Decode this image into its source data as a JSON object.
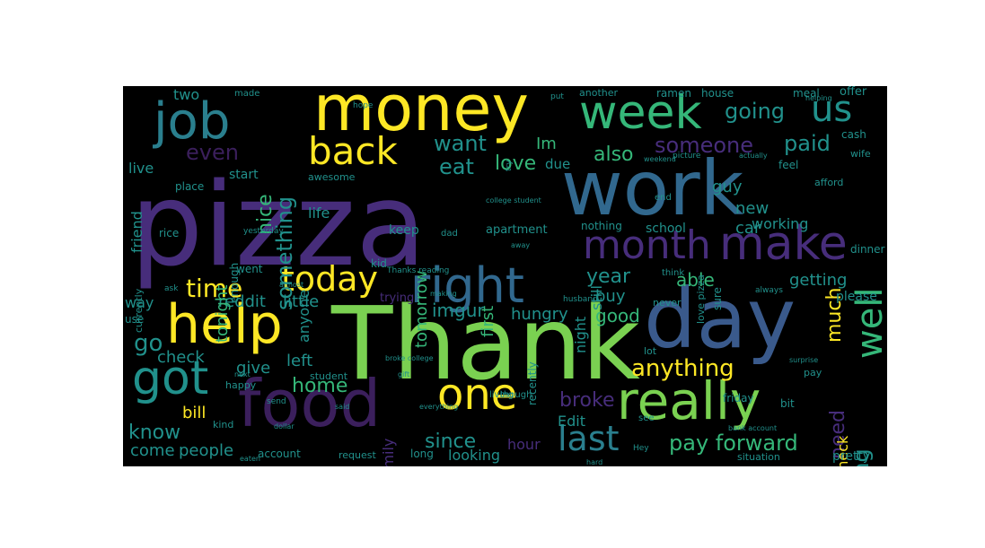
{
  "palette": {
    "purple": "#472d7b",
    "deep": "#3b1f5c",
    "blue": "#3a5a8c",
    "steel": "#31688e",
    "teal": "#21918c",
    "teal2": "#2a7f8e",
    "green": "#35b779",
    "lime": "#7ad151",
    "yellow": "#fde725",
    "bg": "#000000"
  },
  "wordcloud": {
    "words": [
      {
        "text": "pizza",
        "color": "purple"
      },
      {
        "text": "Thank",
        "color": "lime"
      },
      {
        "text": "work",
        "color": "steel"
      },
      {
        "text": "day",
        "color": "blue"
      },
      {
        "text": "money",
        "color": "yellow"
      },
      {
        "text": "food",
        "color": "deep"
      },
      {
        "text": "really",
        "color": "lime"
      },
      {
        "text": "week",
        "color": "green"
      },
      {
        "text": "job",
        "color": "teal2"
      },
      {
        "text": "help",
        "color": "yellow"
      },
      {
        "text": "got",
        "color": "teal"
      },
      {
        "text": "month",
        "color": "purple"
      },
      {
        "text": "make",
        "color": "purple"
      },
      {
        "text": "right",
        "color": "steel"
      },
      {
        "text": "one",
        "color": "yellow"
      },
      {
        "text": "back",
        "color": "yellow"
      },
      {
        "text": "us",
        "color": "teal"
      },
      {
        "text": "today",
        "color": "yellow"
      },
      {
        "text": "last",
        "color": "teal2"
      },
      {
        "text": "eat",
        "color": "teal"
      },
      {
        "text": "want",
        "color": "teal"
      },
      {
        "text": "love",
        "color": "green"
      },
      {
        "text": "even",
        "color": "deep"
      },
      {
        "text": "someone",
        "color": "purple"
      },
      {
        "text": "paid",
        "color": "teal"
      },
      {
        "text": "going",
        "color": "teal"
      },
      {
        "text": "also",
        "color": "green"
      },
      {
        "text": "time",
        "color": "yellow"
      },
      {
        "text": "well",
        "color": "green"
      },
      {
        "text": "much",
        "color": "yellow"
      },
      {
        "text": "something",
        "color": "teal"
      },
      {
        "text": "nice",
        "color": "green"
      },
      {
        "text": "anything",
        "color": "yellow"
      },
      {
        "text": "pay forward",
        "color": "green"
      },
      {
        "text": "broke",
        "color": "purple"
      },
      {
        "text": "since",
        "color": "teal"
      },
      {
        "text": "home",
        "color": "green"
      },
      {
        "text": "know",
        "color": "teal"
      },
      {
        "text": "go",
        "color": "teal"
      },
      {
        "text": "reddit",
        "color": "teal"
      },
      {
        "text": "hungry",
        "color": "teal"
      },
      {
        "text": "imgur",
        "color": "teal"
      },
      {
        "text": "year",
        "color": "teal"
      },
      {
        "text": "able",
        "color": "green"
      },
      {
        "text": "getting",
        "color": "teal"
      },
      {
        "text": "need",
        "color": "purple"
      },
      {
        "text": "thing",
        "color": "teal"
      },
      {
        "text": "good",
        "color": "green"
      },
      {
        "text": "little",
        "color": "teal"
      },
      {
        "text": "people",
        "color": "teal"
      },
      {
        "text": "come",
        "color": "teal"
      },
      {
        "text": "bill",
        "color": "yellow"
      },
      {
        "text": "check",
        "color": "teal"
      },
      {
        "text": "give",
        "color": "teal"
      },
      {
        "text": "left",
        "color": "teal"
      },
      {
        "text": "family",
        "color": "purple"
      },
      {
        "text": "looking",
        "color": "teal"
      },
      {
        "text": "hour",
        "color": "purple"
      },
      {
        "text": "Edit",
        "color": "teal"
      },
      {
        "text": "buy",
        "color": "teal"
      },
      {
        "text": "car",
        "color": "teal"
      },
      {
        "text": "new",
        "color": "teal"
      },
      {
        "text": "guy",
        "color": "teal"
      },
      {
        "text": "working",
        "color": "teal"
      },
      {
        "text": "first",
        "color": "green"
      },
      {
        "text": "tomorrow",
        "color": "green"
      },
      {
        "text": "tonight",
        "color": "green"
      },
      {
        "text": "life",
        "color": "teal"
      },
      {
        "text": "anyone",
        "color": "teal"
      },
      {
        "text": "live",
        "color": "teal"
      },
      {
        "text": "friend",
        "color": "teal"
      },
      {
        "text": "two",
        "color": "teal"
      },
      {
        "text": "Im",
        "color": "green"
      },
      {
        "text": "way",
        "color": "teal"
      },
      {
        "text": "night",
        "color": "teal"
      },
      {
        "text": "still",
        "color": "teal"
      },
      {
        "text": "great",
        "color": "teal"
      },
      {
        "text": "paycheck",
        "color": "yellow"
      },
      {
        "text": "pretty",
        "color": "teal"
      },
      {
        "text": "offer",
        "color": "teal"
      },
      {
        "text": "meal",
        "color": "teal"
      },
      {
        "text": "house",
        "color": "teal"
      },
      {
        "text": "ramen",
        "color": "teal"
      },
      {
        "text": "another",
        "color": "teal"
      },
      {
        "text": "made",
        "color": "teal"
      },
      {
        "text": "due",
        "color": "teal"
      },
      {
        "text": "start",
        "color": "teal"
      },
      {
        "text": "keep",
        "color": "teal"
      },
      {
        "text": "apartment",
        "color": "teal"
      },
      {
        "text": "school",
        "color": "teal"
      },
      {
        "text": "nothing",
        "color": "teal"
      },
      {
        "text": "sure",
        "color": "teal"
      },
      {
        "text": "dinner",
        "color": "teal"
      },
      {
        "text": "please",
        "color": "teal"
      },
      {
        "text": "enough",
        "color": "teal"
      },
      {
        "text": "rice",
        "color": "teal"
      },
      {
        "text": "kid",
        "color": "teal"
      },
      {
        "text": "went",
        "color": "teal"
      },
      {
        "text": "trying",
        "color": "purple"
      },
      {
        "text": "friday",
        "color": "teal"
      },
      {
        "text": "account",
        "color": "teal"
      },
      {
        "text": "request",
        "color": "teal"
      },
      {
        "text": "long",
        "color": "teal"
      },
      {
        "text": "situation",
        "color": "teal"
      },
      {
        "text": "happy",
        "color": "teal"
      },
      {
        "text": "student",
        "color": "teal"
      },
      {
        "text": "cash",
        "color": "teal"
      },
      {
        "text": "wife",
        "color": "teal"
      },
      {
        "text": "afford",
        "color": "teal"
      },
      {
        "text": "feel",
        "color": "teal"
      },
      {
        "text": "place",
        "color": "teal"
      },
      {
        "text": "awesome",
        "color": "teal"
      },
      {
        "text": "use",
        "color": "teal"
      },
      {
        "text": "currently",
        "color": "teal"
      },
      {
        "text": "love pizza",
        "color": "teal"
      },
      {
        "text": "Thanks reading",
        "color": "teal"
      },
      {
        "text": "try",
        "color": "teal"
      },
      {
        "text": "hard",
        "color": "teal"
      },
      {
        "text": "never",
        "color": "teal"
      },
      {
        "text": "bit",
        "color": "teal"
      },
      {
        "text": "pay",
        "color": "teal"
      },
      {
        "text": "lot",
        "color": "teal"
      },
      {
        "text": "recently",
        "color": "teal"
      },
      {
        "text": "though",
        "color": "teal"
      },
      {
        "text": "living",
        "color": "teal"
      },
      {
        "text": "end",
        "color": "teal"
      },
      {
        "text": "kind",
        "color": "teal"
      },
      {
        "text": "think",
        "color": "teal"
      },
      {
        "text": "always",
        "color": "teal"
      },
      {
        "text": "see",
        "color": "teal"
      },
      {
        "text": "put",
        "color": "teal"
      },
      {
        "text": "hope",
        "color": "teal"
      },
      {
        "text": "yesterday",
        "color": "teal"
      },
      {
        "text": "dad",
        "color": "teal"
      },
      {
        "text": "husband",
        "color": "teal"
      },
      {
        "text": "college student",
        "color": "teal"
      },
      {
        "text": "picture",
        "color": "teal"
      },
      {
        "text": "dollar",
        "color": "teal"
      },
      {
        "text": "ask",
        "color": "teal"
      },
      {
        "text": "send",
        "color": "teal"
      },
      {
        "text": "making",
        "color": "teal"
      },
      {
        "text": "said",
        "color": "teal"
      },
      {
        "text": "helping",
        "color": "teal"
      },
      {
        "text": "actually",
        "color": "teal"
      },
      {
        "text": "Hey",
        "color": "teal"
      },
      {
        "text": "weekend",
        "color": "teal"
      },
      {
        "text": "eaten",
        "color": "teal"
      },
      {
        "text": "next",
        "color": "teal"
      },
      {
        "text": "almost",
        "color": "teal"
      },
      {
        "text": "away",
        "color": "teal"
      },
      {
        "text": "bank account",
        "color": "teal"
      },
      {
        "text": "surprise",
        "color": "teal"
      },
      {
        "text": "everything",
        "color": "teal"
      },
      {
        "text": "gift",
        "color": "teal"
      },
      {
        "text": "broke college",
        "color": "teal"
      }
    ]
  }
}
